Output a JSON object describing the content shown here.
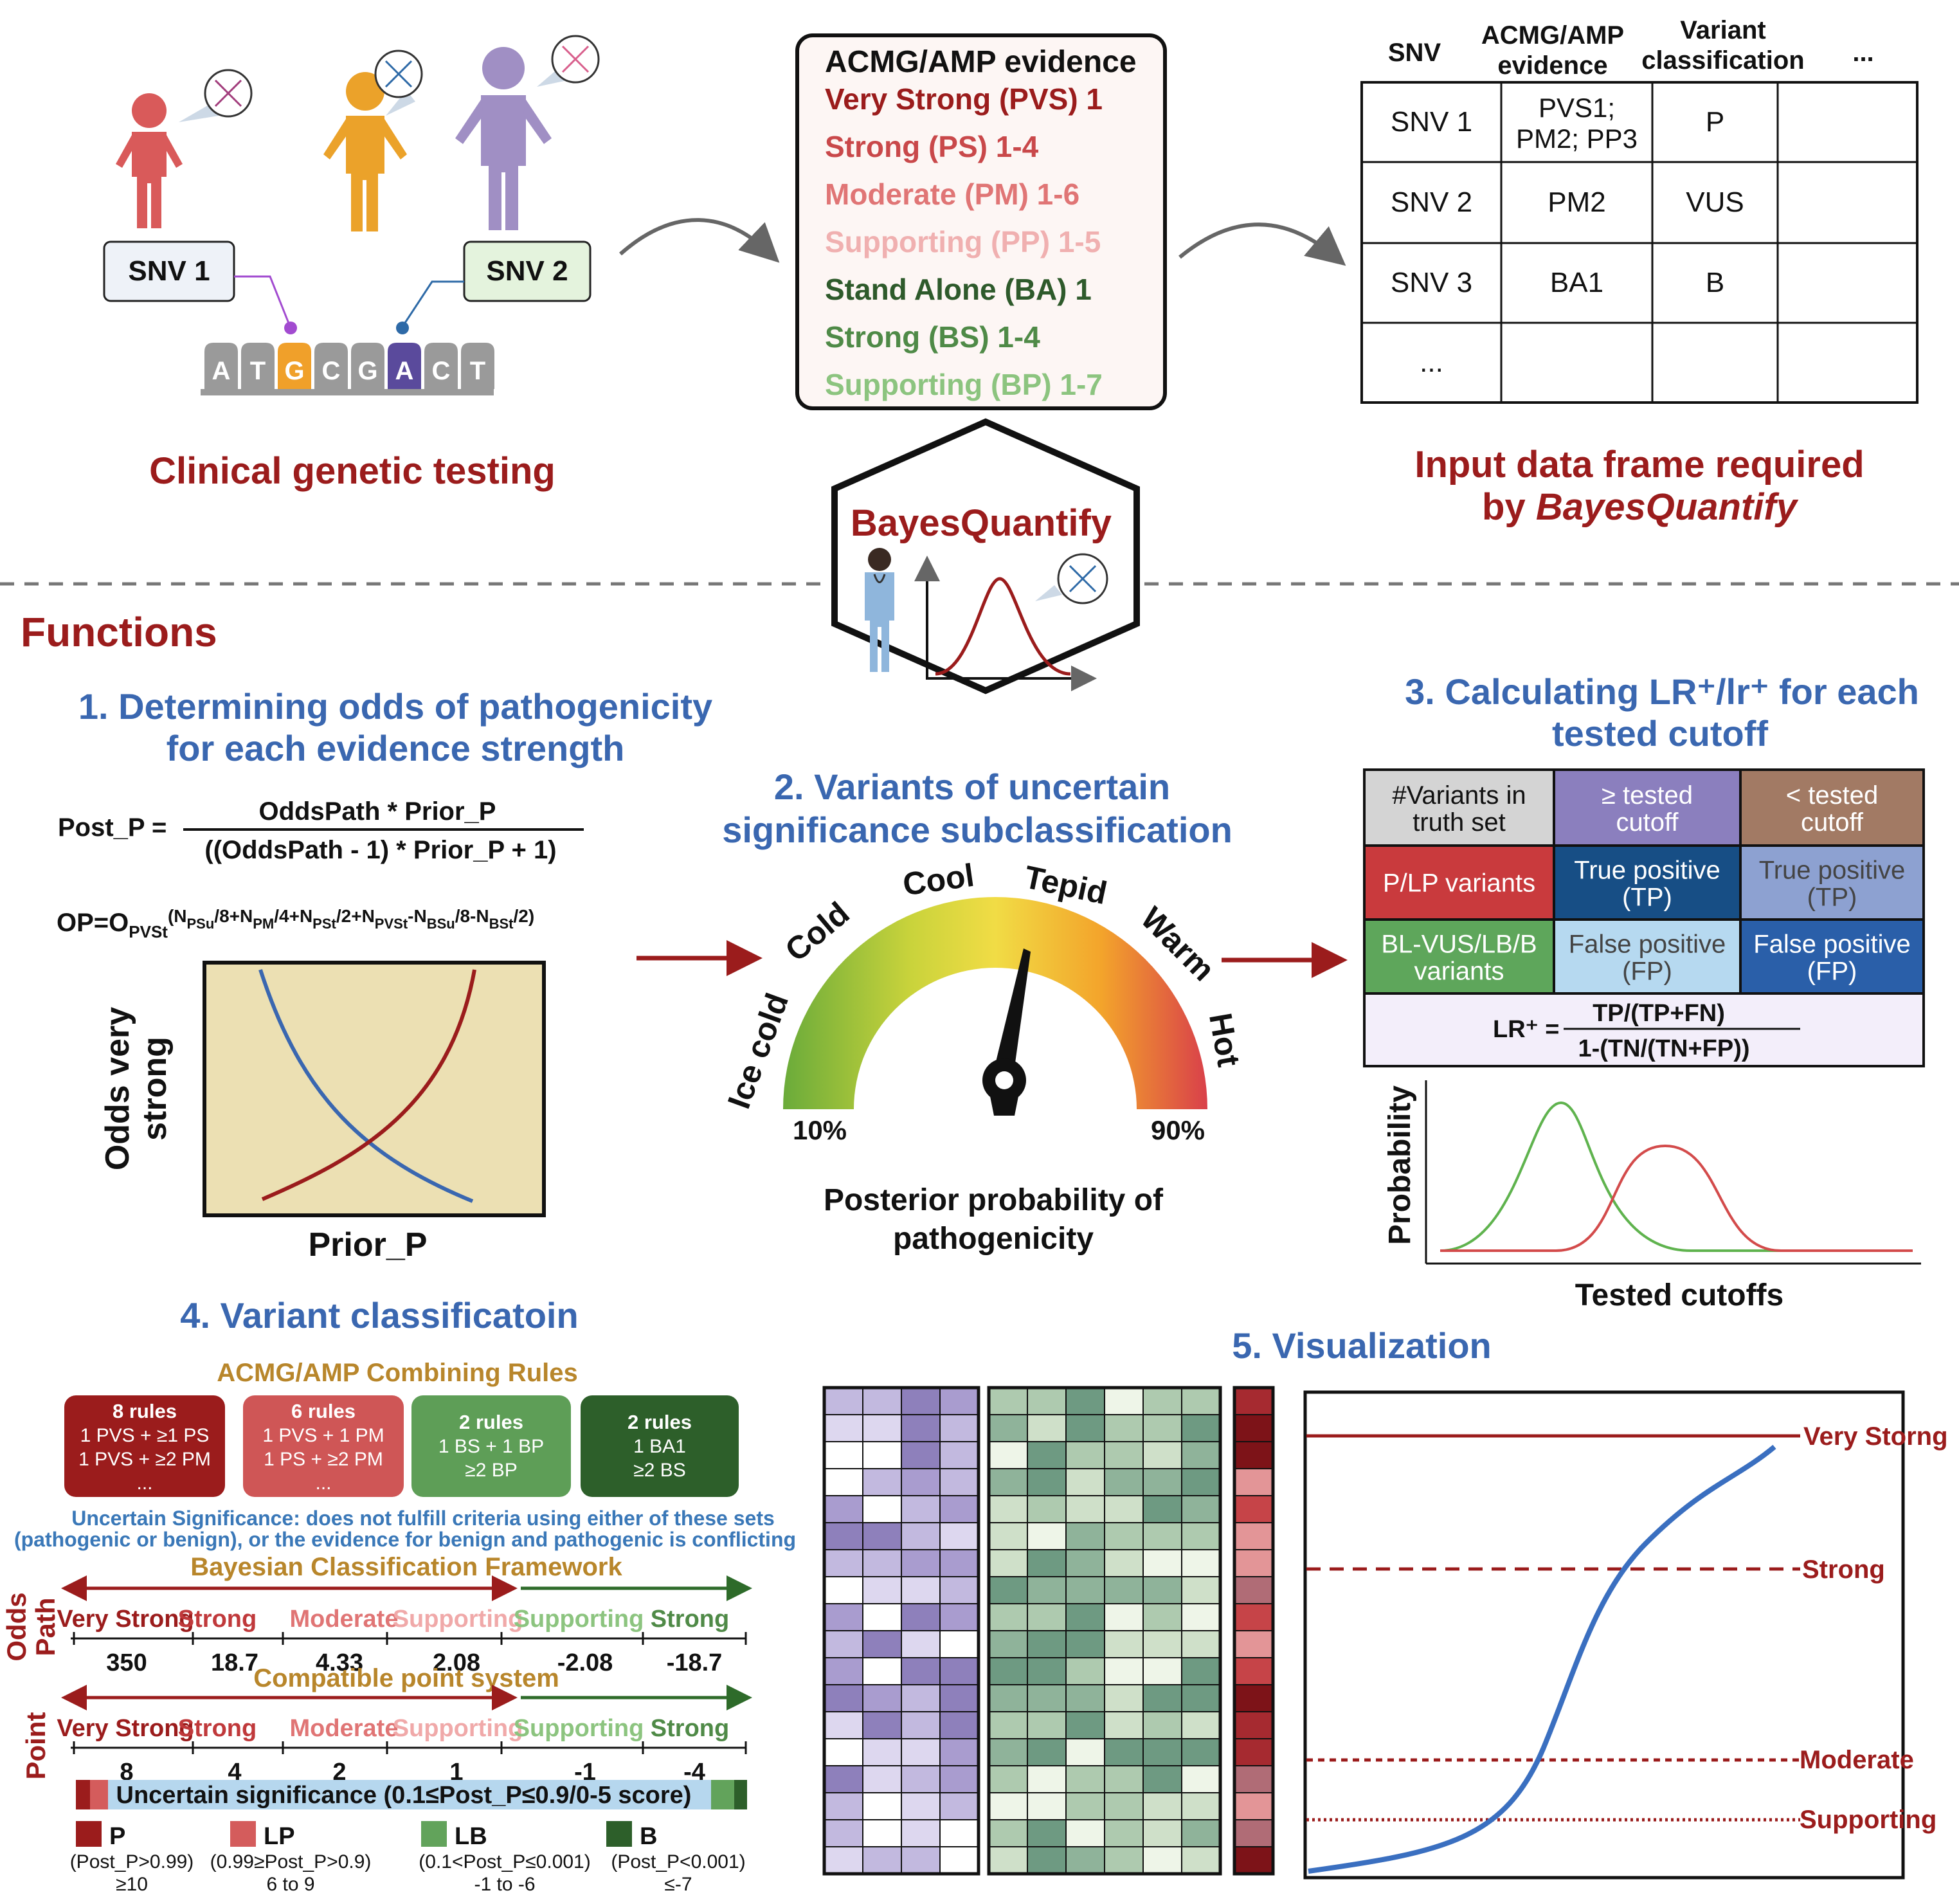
{
  "top": {
    "clinical_testing_label": "Clinical genetic testing",
    "snv1": "SNV 1",
    "snv2": "SNV 2",
    "dna_letters": [
      "A",
      "T",
      "G",
      "C",
      "G",
      "A",
      "C",
      "T"
    ],
    "evidence_box": {
      "title": "ACMG/AMP evidence",
      "lines": [
        {
          "text": "Very Strong (PVS) 1",
          "color": "#9b1c1c"
        },
        {
          "text": "Strong (PS) 1-4",
          "color": "#c9484a"
        },
        {
          "text": "Moderate (PM) 1-6",
          "color": "#e07575"
        },
        {
          "text": "Supporting (PP) 1-5",
          "color": "#f0b0b0"
        },
        {
          "text": "Stand Alone (BA) 1",
          "color": "#2e5a2b"
        },
        {
          "text": "Strong (BS) 1-4",
          "color": "#4f8a47"
        },
        {
          "text": "Supporting (BP) 1-7",
          "color": "#8cc47f"
        }
      ]
    },
    "input_table": {
      "headers": [
        "SNV",
        "ACMG/AMP evidence",
        "Variant classification",
        "..."
      ],
      "rows": [
        [
          "SNV 1",
          "PVS1; PM2; PP3",
          "P",
          ""
        ],
        [
          "SNV 2",
          "PM2",
          "VUS",
          ""
        ],
        [
          "SNV 3",
          "BA1",
          "B",
          ""
        ],
        [
          "...",
          "",
          "",
          ""
        ]
      ]
    },
    "input_caption_line1": "Input data frame required",
    "input_caption_line2_prefix": "by ",
    "input_caption_line2_italic": "BayesQuantify"
  },
  "logo": {
    "name": "BayesQuantify"
  },
  "functions_title": "Functions",
  "section1": {
    "title_line1": "1. Determining odds of pathogenicity",
    "title_line2": "for each evidence strength",
    "formula_lhs": "Post_P =",
    "formula_num": "OddsPath * Prior_P",
    "formula_den": "((OddsPath - 1) * Prior_P + 1)",
    "op_formula": "OP=O(N/8+N/4+N/2+N-N/8-N/2)",
    "plot_ylabel_line1": "Odds very",
    "plot_ylabel_line2": "strong",
    "plot_xlabel": "Prior_P"
  },
  "section2": {
    "title_line1": "2. Variants of uncertain",
    "title_line2": "significance subclassification",
    "gauge_labels": [
      "Ice cold",
      "Cold",
      "Cool",
      "Tepid",
      "Warm",
      "Hot"
    ],
    "gauge_min": "10%",
    "gauge_max": "90%",
    "caption_line1": "Posterior probability of",
    "caption_line2": "pathogenicity"
  },
  "section3": {
    "title_line1": "3. Calculating LR⁺/lr⁺ for each",
    "title_line2": "tested cutoff",
    "table": [
      [
        "#Variants in truth set",
        "≥ tested cutoff",
        "< tested cutoff"
      ],
      [
        "P/LP variants",
        "True positive (TP)",
        "True positive (TP)"
      ],
      [
        "BL-VUS/LB/B variants",
        "False positive (FP)",
        "False positive (FP)"
      ]
    ],
    "lr_lhs": "LR⁺ =",
    "lr_num": "TP/(TP+FN)",
    "lr_den": "1-(TN/(TN+FP))",
    "plot_ylabel": "Probability",
    "plot_xlabel": "Tested cutoffs"
  },
  "section4": {
    "title": "4. Variant classificatoin",
    "combining_title": "ACMG/AMP Combining Rules",
    "rule_boxes": [
      {
        "lines": [
          "8 rules",
          "1 PVS + ≥1 PS",
          "1 PVS + ≥2 PM",
          "..."
        ],
        "color": "#9b1c1c"
      },
      {
        "lines": [
          "6 rules",
          "1 PVS + 1 PM",
          "1 PS + ≥2 PM",
          "..."
        ],
        "color": "#cf5656"
      },
      {
        "lines": [
          "2 rules",
          "1 BS + 1 BP",
          "≥2 BP"
        ],
        "color": "#5e9e57"
      },
      {
        "lines": [
          "2 rules",
          "1 BA1",
          "≥2 BS"
        ],
        "color": "#2d5f2a"
      }
    ],
    "us_note_line1": "Uncertain Significance: does not fulfill criteria using either of these sets",
    "us_note_line2": "(pathogenic or benign), or the evidence for benign and pathogenic is conflicting",
    "bayesian_title": "Bayesian Classification Framework",
    "odds_axis_label_line1": "Odds",
    "odds_axis_label_line2": "Path",
    "strength_labels": [
      "Very Strong",
      "Strong",
      "Moderate",
      "Supporting",
      "Supporting",
      "Strong"
    ],
    "odds_values": [
      "350",
      "18.7",
      "4.33",
      "2.08",
      "-2.08",
      "-18.7"
    ],
    "point_title": "Compatible point system",
    "point_axis_label": "Point",
    "point_values": [
      "8",
      "4",
      "2",
      "1",
      "-1",
      "-4"
    ],
    "us_bar": "Uncertain significance (0.1≤Post_P≤0.9/0-5 score)",
    "legend": [
      {
        "label": "P",
        "sub1": "(Post_P>0.99)",
        "sub2": "≥10",
        "color": "#9b1c1c"
      },
      {
        "label": "LP",
        "sub1": "(0.99≥Post_P>0.9)",
        "sub2": "6 to 9",
        "color": "#d45c5c"
      },
      {
        "label": "LB",
        "sub1": "(0.1<Post_P≤0.001)",
        "sub2": "-1 to -6",
        "color": "#62a35b"
      },
      {
        "label": "B",
        "sub1": "(Post_P<0.001)",
        "sub2": "≤-7",
        "color": "#2d5f2a"
      }
    ]
  },
  "section5": {
    "title": "5. Visualization",
    "threshold_labels": [
      "Very Storng",
      "Strong",
      "Moderate",
      "Supporting"
    ]
  },
  "colors": {
    "dark_red": "#9b1c1c",
    "blue": "#3a67b0",
    "gold": "#b8862b",
    "green": "#2e6b2a"
  }
}
